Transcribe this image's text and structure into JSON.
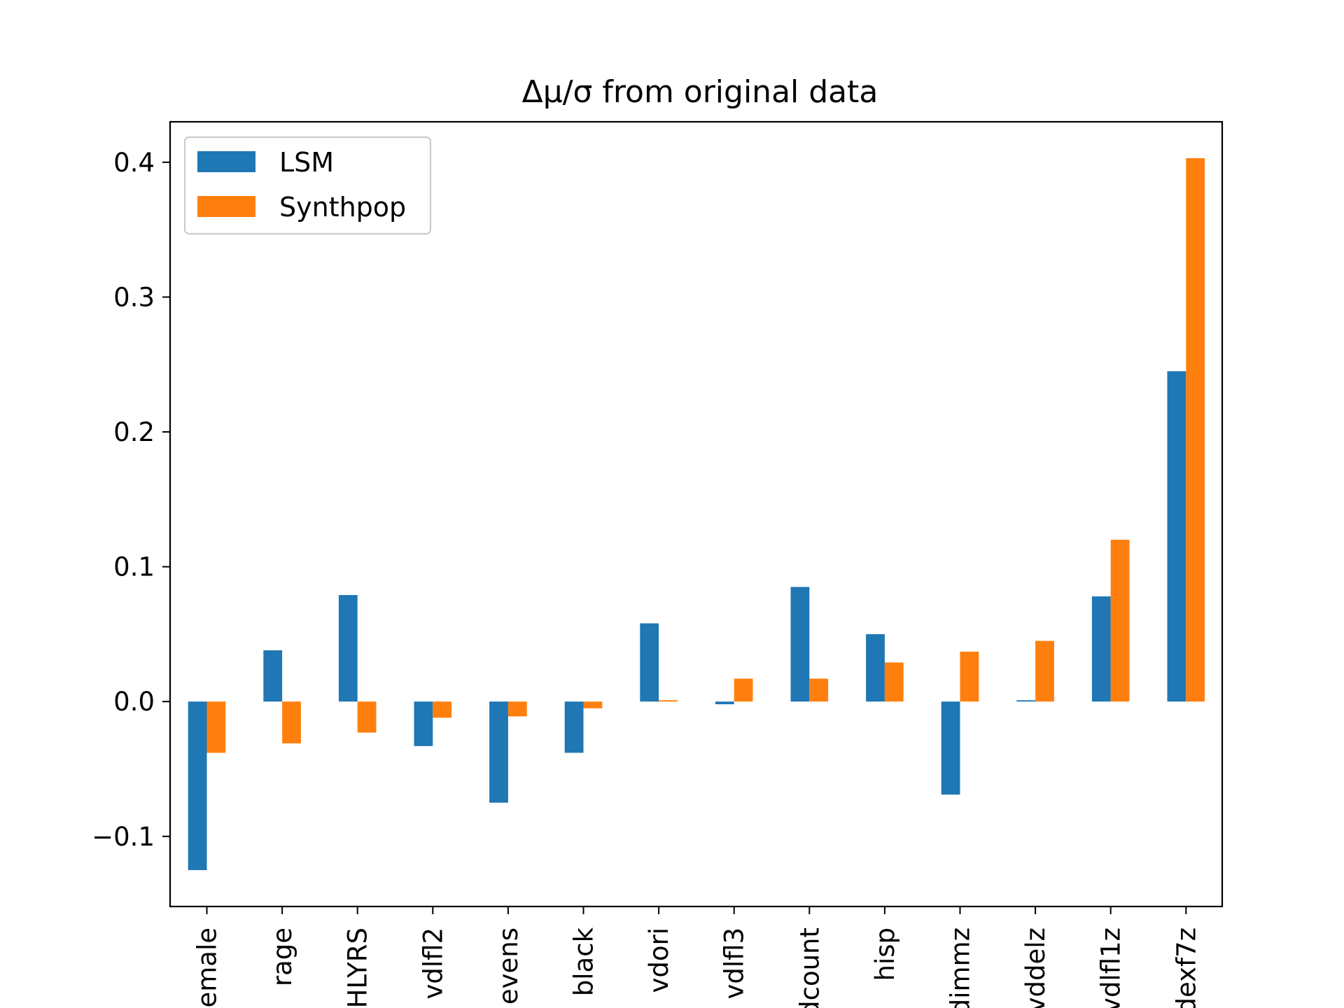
{
  "chart_data": {
    "type": "bar",
    "title": "Δμ/σ from original data",
    "xlabel": "",
    "ylabel": "",
    "ylim": [
      -0.152,
      0.43
    ],
    "yticks": [
      -0.1,
      0.0,
      0.1,
      0.2,
      0.3,
      0.4
    ],
    "ytick_labels": [
      "−0.1",
      "0.0",
      "0.1",
      "0.2",
      "0.3",
      "0.4"
    ],
    "categories": [
      "female",
      "rage",
      "HLYRS",
      "vdlfl2",
      "evens",
      "black",
      "vdori",
      "vdlfl3",
      "dcount",
      "hisp",
      "dimmz",
      "vddelz",
      "vdlfl1z",
      "dexf7z"
    ],
    "category_labels_visible": [
      "emale",
      "rage",
      "HLYRS",
      "vdlfl2",
      "evens",
      "black",
      "vdori",
      "vdlfl3",
      "dcount",
      "hisp",
      "dimmz",
      "vddelz",
      "vdlfl1z",
      "dexf7z"
    ],
    "series": [
      {
        "name": "LSM",
        "color": "#1f77b4",
        "values": [
          -0.125,
          0.038,
          0.079,
          -0.033,
          -0.075,
          -0.038,
          0.058,
          -0.002,
          0.085,
          0.05,
          -0.069,
          0.001,
          0.078,
          0.245
        ]
      },
      {
        "name": "Synthpop",
        "color": "#ff7f0e",
        "values": [
          -0.038,
          -0.031,
          -0.023,
          -0.012,
          -0.011,
          -0.005,
          0.001,
          0.017,
          0.017,
          0.029,
          0.037,
          0.045,
          0.12,
          0.403
        ]
      }
    ],
    "legend": {
      "position": "upper-left",
      "entries": [
        "LSM",
        "Synthpop"
      ]
    },
    "grid": false
  }
}
